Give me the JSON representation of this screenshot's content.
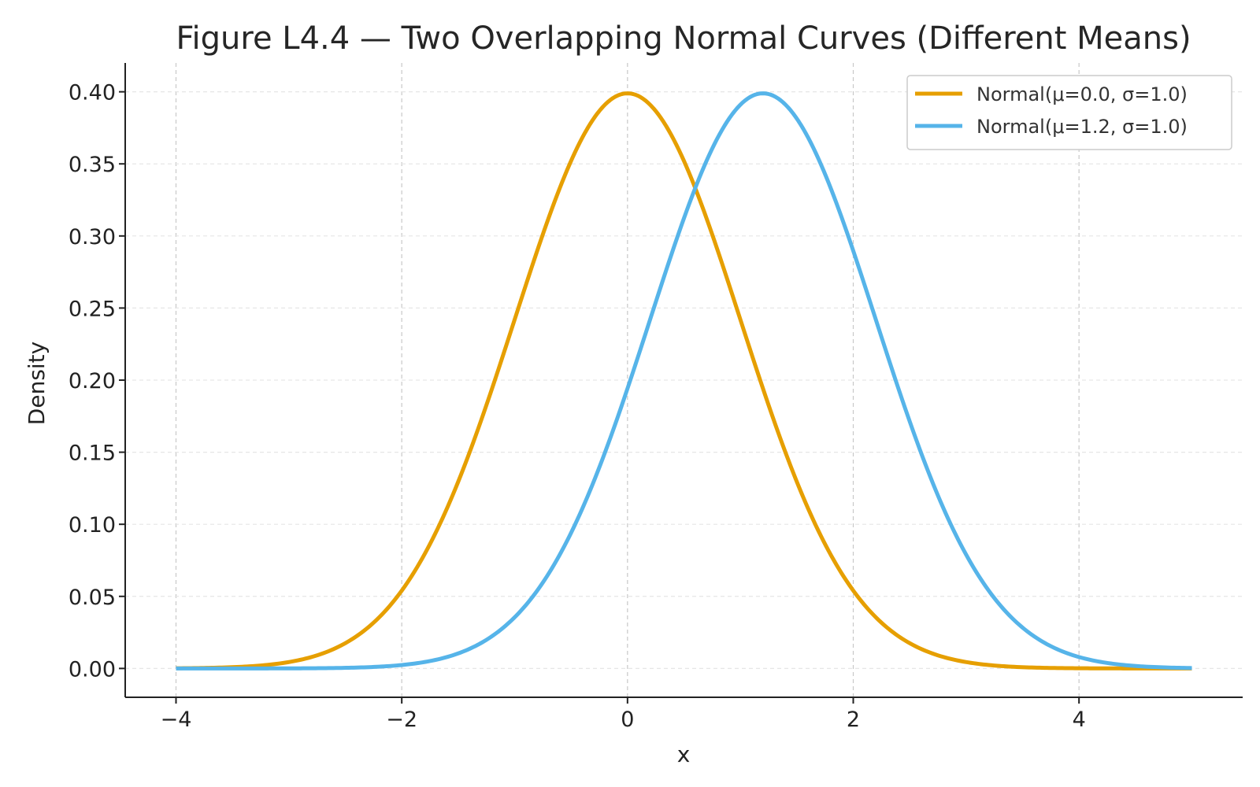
{
  "chart_data": {
    "type": "line",
    "title": "Figure L4.4 — Two Overlapping Normal Curves (Different Means)",
    "xlabel": "x",
    "ylabel": "Density",
    "xlim": [
      -4.45,
      5.45
    ],
    "ylim": [
      -0.02,
      0.42
    ],
    "x_ticks": [
      -4,
      -2,
      0,
      2,
      4
    ],
    "x_tick_labels": [
      "−4",
      "−2",
      "0",
      "2",
      "4"
    ],
    "y_ticks": [
      0.0,
      0.05,
      0.1,
      0.15,
      0.2,
      0.25,
      0.3,
      0.35,
      0.4
    ],
    "y_tick_labels": [
      "0.00",
      "0.05",
      "0.10",
      "0.15",
      "0.20",
      "0.25",
      "0.30",
      "0.35",
      "0.40"
    ],
    "grid": true,
    "legend_position": "top-right",
    "x_range": [
      -4,
      5
    ],
    "series": [
      {
        "name": "Normal(μ=0.0, σ=1.0)",
        "mu": 0.0,
        "sigma": 1.0,
        "color": "#E69F00",
        "x": [
          -4,
          -3.5,
          -3,
          -2.5,
          -2,
          -1.5,
          -1,
          -0.5,
          0,
          0.5,
          1,
          1.5,
          2,
          2.5,
          3,
          3.5,
          4,
          4.5,
          5
        ],
        "y": [
          0.0001,
          0.0009,
          0.0044,
          0.0175,
          0.054,
          0.1295,
          0.242,
          0.3521,
          0.3989,
          0.3521,
          0.242,
          0.1295,
          0.054,
          0.0175,
          0.0044,
          0.0009,
          0.0001,
          0.0,
          0.0
        ]
      },
      {
        "name": "Normal(μ=1.2, σ=1.0)",
        "mu": 1.2,
        "sigma": 1.0,
        "color": "#56B4E9",
        "x": [
          -4,
          -3.5,
          -3,
          -2.5,
          -2,
          -1.5,
          -1,
          -0.5,
          0,
          0.5,
          1,
          1.5,
          2,
          2.5,
          3,
          3.5,
          4,
          4.5,
          5
        ],
        "y": [
          0.0,
          0.0,
          0.0001,
          0.0004,
          0.0024,
          0.0104,
          0.0355,
          0.094,
          0.1942,
          0.3123,
          0.391,
          0.3814,
          0.2897,
          0.1714,
          0.079,
          0.0283,
          0.0079,
          0.0017,
          0.0003
        ]
      }
    ]
  }
}
